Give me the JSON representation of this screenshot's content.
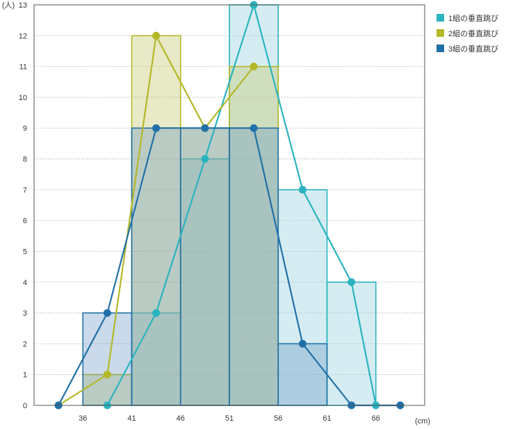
{
  "chart_data": {
    "type": "bar",
    "x_unit": "(cm)",
    "y_unit": "(人)",
    "ylim": [
      0,
      13
    ],
    "yticks": [
      0,
      1,
      2,
      3,
      4,
      5,
      6,
      7,
      8,
      9,
      10,
      11,
      12,
      13
    ],
    "xticks": [
      36,
      41,
      46,
      51,
      56,
      61,
      66
    ],
    "xlim": [
      31,
      71
    ],
    "bins": [
      [
        36,
        41
      ],
      [
        41,
        46
      ],
      [
        46,
        51
      ],
      [
        51,
        56
      ],
      [
        56,
        61
      ],
      [
        61,
        66
      ]
    ],
    "grid": true,
    "legend_position": "top-right",
    "series": [
      {
        "name": "1組の垂直跳び",
        "color": "#2ab3c0",
        "fill": "rgba(150, 210, 222, 0.40)",
        "values": [
          0,
          3,
          8,
          13,
          7,
          4
        ],
        "polygon": [
          [
            38.5,
            0
          ],
          [
            43.5,
            3
          ],
          [
            48.5,
            8
          ],
          [
            53.5,
            13
          ],
          [
            58.5,
            7
          ],
          [
            63.5,
            4
          ],
          [
            66,
            0
          ]
        ]
      },
      {
        "name": "2組の垂直跳び",
        "color": "#b3b828",
        "fill": "rgba(200, 202, 120, 0.42)",
        "values": [
          1,
          12,
          9,
          11,
          0,
          0
        ],
        "polygon": [
          [
            33.5,
            0
          ],
          [
            38.5,
            1
          ],
          [
            43.5,
            12
          ],
          [
            48.5,
            9
          ],
          [
            53.5,
            11
          ]
        ]
      },
      {
        "name": "3組の垂直跳び",
        "color": "#2070a8",
        "fill": "rgba(90, 140, 190, 0.32)",
        "values": [
          3,
          9,
          9,
          9,
          2,
          0
        ],
        "polygon": [
          [
            33.5,
            0
          ],
          [
            38.5,
            3
          ],
          [
            43.5,
            9
          ],
          [
            48.5,
            9
          ],
          [
            53.5,
            9
          ],
          [
            58.5,
            2
          ],
          [
            63.5,
            0
          ],
          [
            68.5,
            0
          ]
        ]
      }
    ]
  }
}
